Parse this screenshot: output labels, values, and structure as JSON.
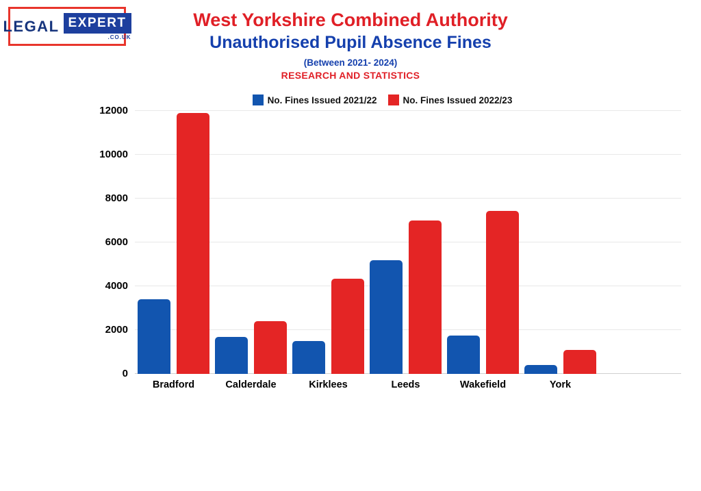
{
  "logo": {
    "legal": "LEGAL",
    "expert": "EXPERT",
    "couk": ".CO.UK"
  },
  "header": {
    "title1": "West Yorkshire Combined Authority",
    "title2": "Unauthorised Pupil Absence Fines",
    "subtitle": "(Between 2021- 2024)",
    "subtitle2": "RESEARCH AND STATISTICS"
  },
  "colors": {
    "title_red": "#e01f26",
    "title_blue": "#1540ad",
    "bar_blue": "#1255af",
    "bar_red": "#e42525",
    "logo_navy": "#17357d",
    "logo_box_blue": "#1d3f9e",
    "logo_border_red": "#e8352c"
  },
  "chart_data": {
    "type": "bar",
    "title": "West Yorkshire Combined Authority Unauthorised Pupil Absence Fines",
    "categories": [
      "Bradford",
      "Calderdale",
      "Kirklees",
      "Leeds",
      "Wakefield",
      "York"
    ],
    "series": [
      {
        "name": "No. Fines Issued 2021/22",
        "color": "#1255af",
        "values": [
          3400,
          1700,
          1500,
          5200,
          1750,
          400
        ]
      },
      {
        "name": "No. Fines Issued 2022/23",
        "color": "#e42525",
        "values": [
          11900,
          2400,
          4350,
          7000,
          7450,
          1100
        ]
      }
    ],
    "xlabel": "",
    "ylabel": "",
    "ylim": [
      0,
      12000
    ],
    "yticks": [
      0,
      2000,
      4000,
      6000,
      8000,
      10000,
      12000
    ],
    "grid": true,
    "legend_position": "top"
  }
}
